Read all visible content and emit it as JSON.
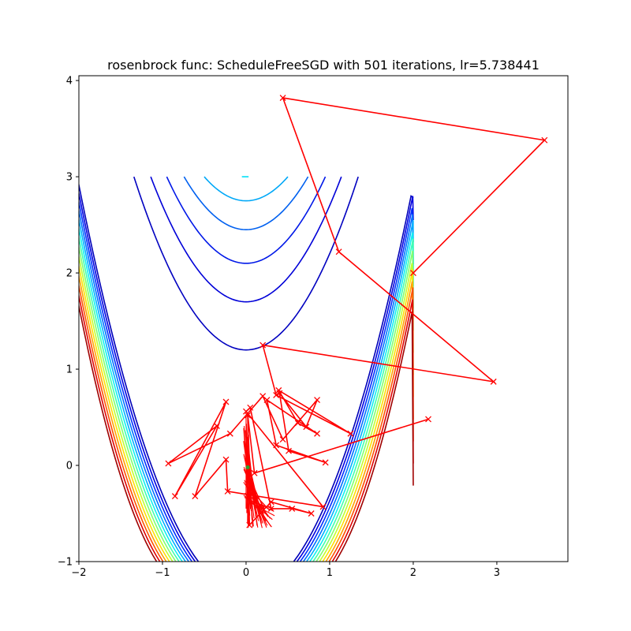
{
  "chart_data": {
    "type": "line",
    "title": "rosenbrock func: ScheduleFreeSGD with 501 iterations, lr=5.738441",
    "xlabel": "",
    "ylabel": "",
    "xlim": [
      -2,
      3.85
    ],
    "ylim": [
      -1,
      4.05
    ],
    "xticks": [
      -2,
      -1,
      0,
      1,
      2,
      3
    ],
    "yticks": [
      -1,
      0,
      1,
      2,
      3,
      4
    ],
    "grid": false,
    "contour": {
      "function": "rosenbrock",
      "levels": [
        {
          "value": 1.2,
          "color": "#0000c0"
        },
        {
          "value": 1.7,
          "color": "#0000d8"
        },
        {
          "value": 2.1,
          "color": "#0018e8"
        },
        {
          "value": 2.45,
          "color": "#0060f0"
        },
        {
          "value": 2.75,
          "color": "#00a8f8"
        },
        {
          "value": 3.0,
          "color": "#00e0f8"
        }
      ],
      "outer_colors": [
        "#0000b8",
        "#0000e0",
        "#0030ff",
        "#0070ff",
        "#00b0ff",
        "#10f0f0",
        "#40ffb0",
        "#80ff70",
        "#c0ff30",
        "#ffe000",
        "#ffa000",
        "#ff5000",
        "#e00000",
        "#a00000"
      ]
    },
    "series": [
      {
        "color": "#ff0000",
        "marker": "x",
        "points": [
          [
            2.0,
            2.0
          ],
          [
            3.57,
            3.38
          ],
          [
            0.44,
            3.82
          ],
          [
            1.11,
            2.22
          ],
          [
            2.96,
            0.87
          ],
          [
            0.2,
            1.25
          ],
          [
            0.36,
            0.73
          ],
          [
            1.25,
            0.33
          ],
          [
            0.39,
            0.78
          ],
          [
            0.62,
            0.44
          ],
          [
            0.85,
            0.33
          ],
          [
            0.25,
            0.68
          ],
          [
            0.36,
            0.21
          ],
          [
            0.95,
            0.03
          ],
          [
            0.51,
            0.15
          ],
          [
            0.4,
            0.75
          ],
          [
            0.72,
            0.4
          ],
          [
            0.85,
            0.68
          ],
          [
            0.44,
            0.27
          ],
          [
            0.2,
            0.72
          ],
          [
            -0.19,
            0.33
          ],
          [
            -0.93,
            0.02
          ],
          [
            -0.35,
            0.41
          ],
          [
            -0.85,
            -0.32
          ],
          [
            -0.24,
            0.66
          ],
          [
            -0.61,
            -0.32
          ],
          [
            -0.24,
            0.06
          ],
          [
            -0.22,
            -0.27
          ],
          [
            0.92,
            -0.43
          ],
          [
            0.0,
            0.56
          ],
          [
            0.05,
            0.6
          ],
          [
            0.3,
            -0.45
          ],
          [
            0.55,
            -0.45
          ],
          [
            0.78,
            -0.5
          ],
          [
            0.3,
            -0.38
          ],
          [
            0.04,
            -0.62
          ],
          [
            0.02,
            0.52
          ],
          [
            0.1,
            -0.08
          ],
          [
            2.18,
            0.48
          ]
        ]
      }
    ]
  }
}
